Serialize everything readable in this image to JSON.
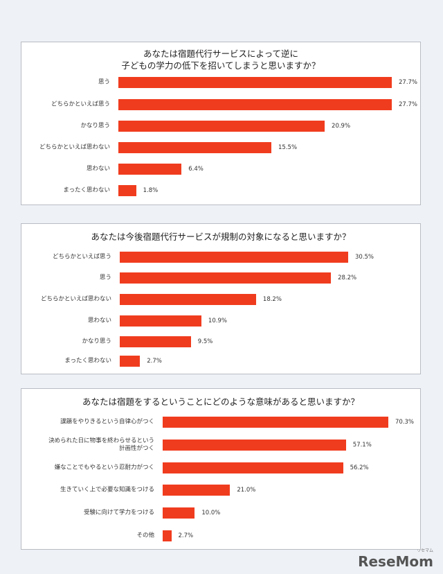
{
  "chart_data": [
    {
      "type": "bar",
      "orientation": "horizontal",
      "title": "あなたは宿題代行サービスによって逆に\n子どもの学力の低下を招いてしまうと思いますか？",
      "color": "#f03c1e",
      "categories": [
        "思う",
        "どちらかといえば思う",
        "かなり思う",
        "どちらかといえば思わない",
        "思わない",
        "まったく思わない"
      ],
      "values": [
        27.7,
        27.7,
        20.9,
        15.5,
        6.4,
        1.8
      ],
      "value_labels": [
        "27.7%",
        "27.7%",
        "20.9%",
        "15.5%",
        "6.4%",
        "1.8%"
      ]
    },
    {
      "type": "bar",
      "orientation": "horizontal",
      "title": "あなたは今後宿題代行サービスが規制の対象になると思いますか？",
      "color": "#f03c1e",
      "categories": [
        "どちらかといえば思う",
        "思う",
        "どちらかといえば思わない",
        "思わない",
        "かなり思う",
        "まったく思わない"
      ],
      "values": [
        30.5,
        28.2,
        18.2,
        10.9,
        9.5,
        2.7
      ],
      "value_labels": [
        "30.5%",
        "28.2%",
        "18.2%",
        "10.9%",
        "9.5%",
        "2.7%"
      ]
    },
    {
      "type": "bar",
      "orientation": "horizontal",
      "title": "あなたは宿題をするということにどのような意味があると思いますか？",
      "color": "#f03c1e",
      "categories": [
        "課題をやりきるという自律心がつく",
        "決められた日に物事を終わらせるという\n計画性がつく",
        "嫌なことでもやるという忍耐力がつく",
        "生きていく上で必要な知識をつける",
        "受験に向けて学力をつける",
        "その他"
      ],
      "values": [
        70.3,
        57.1,
        56.2,
        21.0,
        10.0,
        2.7
      ],
      "value_labels": [
        "70.3%",
        "57.1%",
        "56.2%",
        "21.0%",
        "10.0%",
        "2.7%"
      ]
    }
  ],
  "watermark": {
    "logo": "ReseMom",
    "kana": "リセマム"
  }
}
